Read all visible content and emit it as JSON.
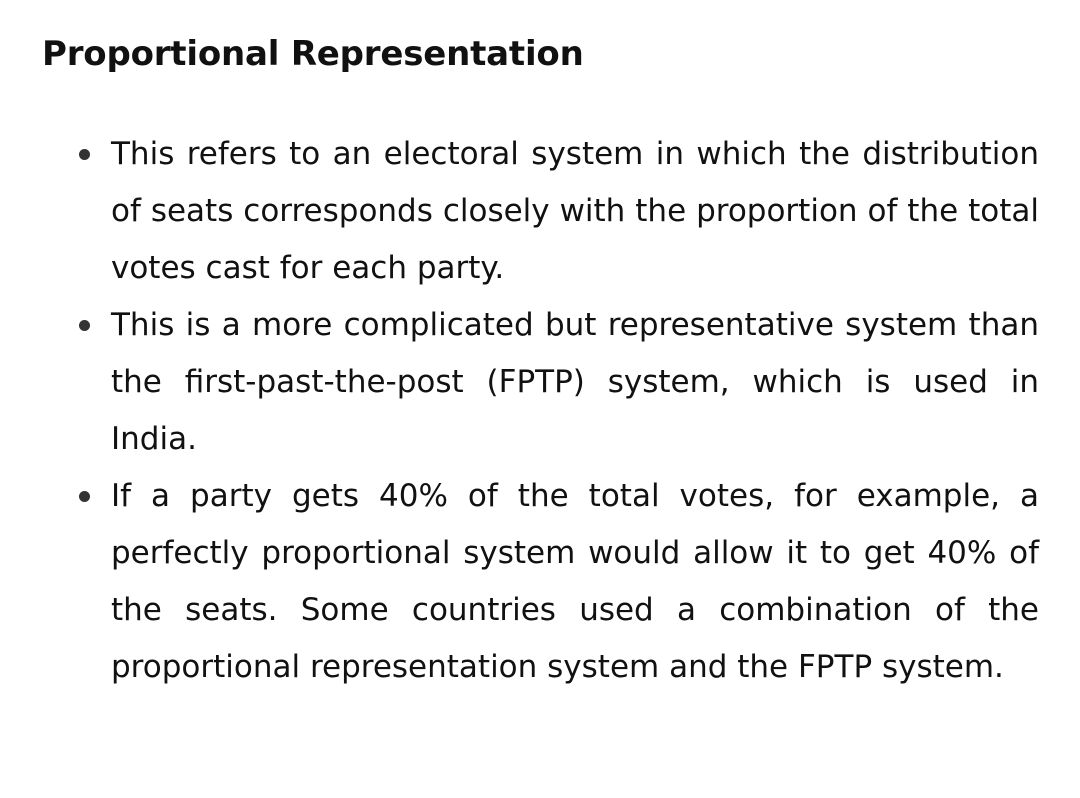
{
  "heading": "Proportional Representation",
  "bullets": [
    {
      "text": "This refers to an electoral system in which the distribution of seats corresponds closely with the proportion of the total votes cast for each party."
    },
    {
      "text": "This is a more complicated but representative system than the first-past-the-post (FPTP) system, which is used in India."
    },
    {
      "text": "If a party gets 40% of the total votes, for example, a perfectly proportional system would allow it to get 40% of the seats. Some countries used a combination of the proportional representation system and the FPTP system."
    }
  ]
}
